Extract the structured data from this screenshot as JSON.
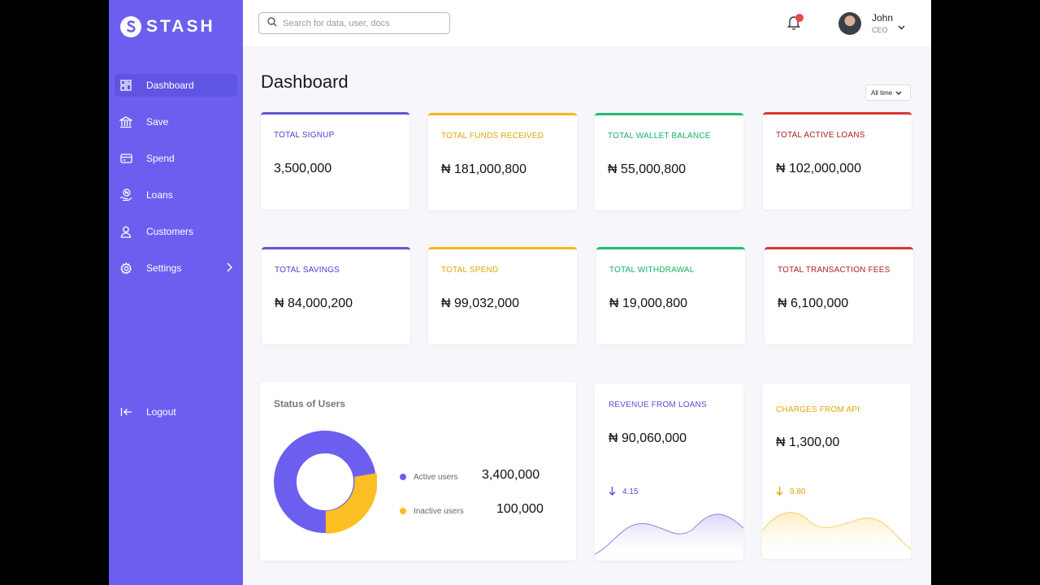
{
  "brand": {
    "name": "STASH"
  },
  "colors": {
    "primary": "#6c5ff0",
    "purple": "#6157d6",
    "yellow": "#f5b819",
    "green": "#1fbf73",
    "red": "#d93636"
  },
  "sidebar": {
    "items": [
      {
        "label": "Dashboard",
        "icon": "dashboard-icon"
      },
      {
        "label": "Save",
        "icon": "bank-icon"
      },
      {
        "label": "Spend",
        "icon": "card-icon"
      },
      {
        "label": "Loans",
        "icon": "loan-hand-icon"
      },
      {
        "label": "Customers",
        "icon": "user-icon"
      },
      {
        "label": "Settings",
        "icon": "gear-icon"
      }
    ],
    "logout": "Logout"
  },
  "search": {
    "placeholder": "Search for data, user, docs"
  },
  "user": {
    "name": "John",
    "role": "CEO"
  },
  "page": {
    "title": "Dashboard",
    "filter": "All time"
  },
  "stats": [
    {
      "label": "TOTAL SIGNUP",
      "value": "3,500,000"
    },
    {
      "label": "TOTAL FUNDS RECEIVED",
      "value": "₦ 181,000,800"
    },
    {
      "label": "TOTAL WALLET BALANCE",
      "value": "₦ 55,000,800"
    },
    {
      "label": "TOTAL ACTIVE LOANS",
      "value": "₦ 102,000,000"
    },
    {
      "label": "TOTAL SAVINGS",
      "value": "₦ 84,000,200"
    },
    {
      "label": "TOTAL SPEND",
      "value": "₦ 99,032,000"
    },
    {
      "label": "TOTAL WITHDRAWAL",
      "value": "₦ 19,000,800"
    },
    {
      "label": "TOTAL TRANSACTION FEES",
      "value": "₦ 6,100,000"
    }
  ],
  "users_status": {
    "title": "Status of Users",
    "active": {
      "label": "Active users",
      "value": "3,400,000"
    },
    "inactive": {
      "label": "Inactive users",
      "value": "100,000"
    }
  },
  "revenue_loans": {
    "label": "REVENUE FROM LOANS",
    "value": "₦ 90,060,000",
    "trend": "4.15"
  },
  "charges_api": {
    "label": "CHARGES FROM API",
    "value": "₦ 1,300,00",
    "trend": "9.80"
  }
}
